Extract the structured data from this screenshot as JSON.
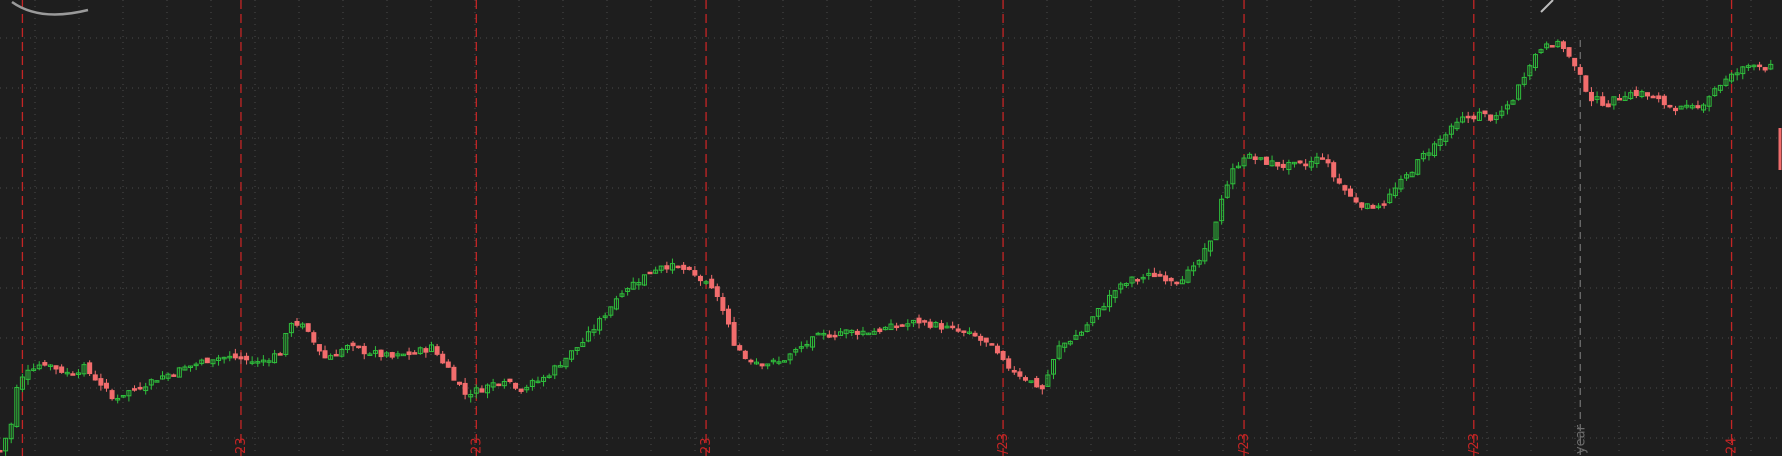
{
  "chart_data": {
    "type": "candlestick",
    "title": "",
    "xlabel": "",
    "ylabel": "",
    "grid": true,
    "colors": {
      "background": "#1e1e1e",
      "up": "#2fbf3c",
      "down": "#f26d6d",
      "grid": "#4a4a4a",
      "period_separator": "#c42525",
      "year_separator": "#6e6e6e"
    },
    "ylim": [
      30,
      118
    ],
    "xlim": [
      0,
      318
    ],
    "separators": [
      {
        "x": 4,
        "label": ""
      },
      {
        "x": 43,
        "label": "23"
      },
      {
        "x": 85,
        "label": "23"
      },
      {
        "x": 126,
        "label": "23"
      },
      {
        "x": 179,
        "label": "/23"
      },
      {
        "x": 222,
        "label": "/23"
      },
      {
        "x": 263,
        "label": "/23"
      },
      {
        "x": 309,
        "label": "24"
      }
    ],
    "year_marker": {
      "x": 282,
      "label": "year"
    },
    "close_path": [
      [
        0,
        31
      ],
      [
        2,
        36
      ],
      [
        3,
        43
      ],
      [
        5,
        47
      ],
      [
        8,
        48
      ],
      [
        12,
        46
      ],
      [
        15,
        47
      ],
      [
        18,
        44
      ],
      [
        20,
        41
      ],
      [
        24,
        43
      ],
      [
        28,
        45
      ],
      [
        33,
        47
      ],
      [
        38,
        49
      ],
      [
        42,
        49
      ],
      [
        46,
        48
      ],
      [
        50,
        50
      ],
      [
        52,
        56
      ],
      [
        54,
        55
      ],
      [
        58,
        49
      ],
      [
        62,
        51
      ],
      [
        66,
        50
      ],
      [
        70,
        49
      ],
      [
        74,
        50
      ],
      [
        77,
        51
      ],
      [
        80,
        47
      ],
      [
        83,
        42
      ],
      [
        86,
        43
      ],
      [
        90,
        45
      ],
      [
        93,
        43
      ],
      [
        97,
        45
      ],
      [
        101,
        49
      ],
      [
        104,
        52
      ],
      [
        107,
        56
      ],
      [
        111,
        62
      ],
      [
        114,
        64
      ],
      [
        118,
        67
      ],
      [
        122,
        66
      ],
      [
        125,
        64
      ],
      [
        128,
        61
      ],
      [
        131,
        52
      ],
      [
        133,
        49
      ],
      [
        136,
        48
      ],
      [
        139,
        48
      ],
      [
        143,
        51
      ],
      [
        146,
        53
      ],
      [
        150,
        54
      ],
      [
        155,
        54
      ],
      [
        160,
        55
      ],
      [
        164,
        56
      ],
      [
        168,
        55
      ],
      [
        171,
        54
      ],
      [
        174,
        53
      ],
      [
        177,
        51
      ],
      [
        179,
        48
      ],
      [
        183,
        45
      ],
      [
        186,
        43
      ],
      [
        189,
        51
      ],
      [
        193,
        54
      ],
      [
        196,
        58
      ],
      [
        199,
        62
      ],
      [
        202,
        64
      ],
      [
        206,
        65
      ],
      [
        210,
        64
      ],
      [
        213,
        66
      ],
      [
        216,
        71
      ],
      [
        218,
        80
      ],
      [
        220,
        85
      ],
      [
        222,
        88
      ],
      [
        225,
        87
      ],
      [
        229,
        86
      ],
      [
        233,
        86
      ],
      [
        236,
        88
      ],
      [
        238,
        84
      ],
      [
        241,
        80
      ],
      [
        244,
        78
      ],
      [
        247,
        79
      ],
      [
        251,
        84
      ],
      [
        254,
        88
      ],
      [
        257,
        91
      ],
      [
        261,
        95
      ],
      [
        264,
        96
      ],
      [
        267,
        95
      ],
      [
        270,
        99
      ],
      [
        273,
        106
      ],
      [
        276,
        110
      ],
      [
        279,
        109
      ],
      [
        281,
        105
      ],
      [
        284,
        99
      ],
      [
        287,
        98
      ],
      [
        290,
        100
      ],
      [
        293,
        100
      ],
      [
        297,
        98
      ],
      [
        300,
        97
      ],
      [
        303,
        97
      ],
      [
        306,
        101
      ],
      [
        310,
        104
      ],
      [
        313,
        106
      ],
      [
        315,
        105
      ]
    ]
  },
  "markers": {
    "top_left_logo": "logo-arc",
    "top_right_arrow": "up-arrow"
  }
}
